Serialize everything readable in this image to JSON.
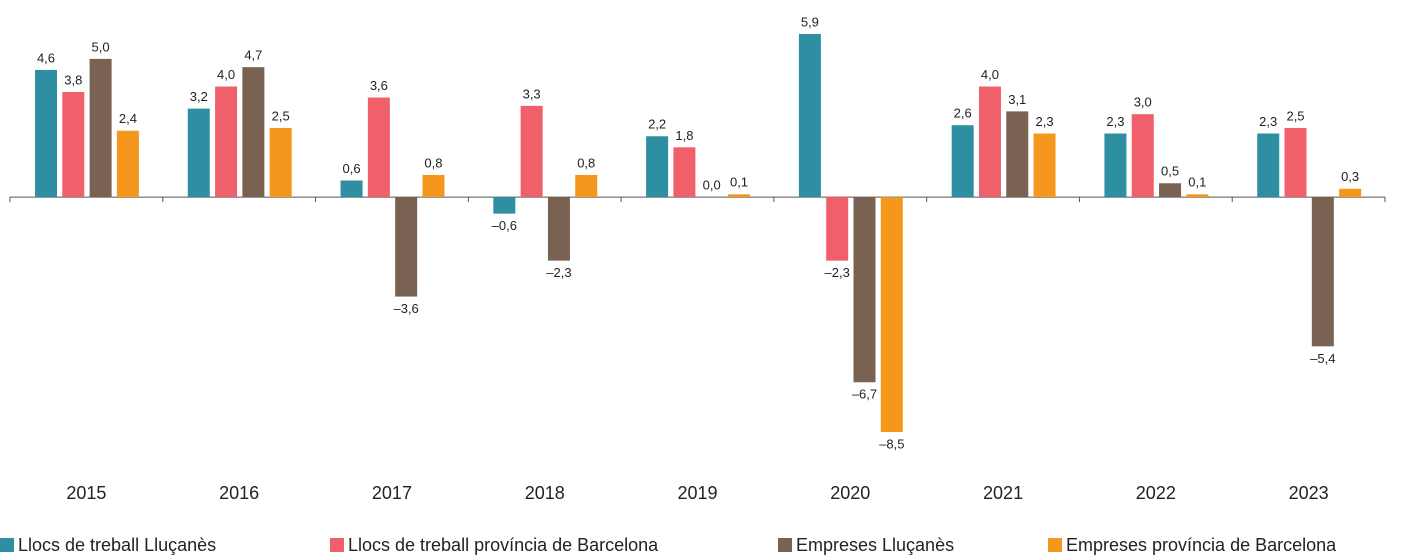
{
  "chart_data": {
    "type": "bar",
    "categories": [
      "2015",
      "2016",
      "2017",
      "2018",
      "2019",
      "2020",
      "2021",
      "2022",
      "2023"
    ],
    "series": [
      {
        "name": "Llocs de treball Lluçanès",
        "color": "#2e8fa3",
        "values": [
          4.6,
          3.2,
          0.6,
          -0.6,
          2.2,
          5.9,
          2.6,
          2.3,
          2.3
        ],
        "value_labels": [
          "4,6",
          "3,2",
          "0,6",
          "–0,6",
          "2,2",
          "5,9",
          "2,6",
          "2,3",
          "2,3"
        ]
      },
      {
        "name": "Llocs de treball província de Barcelona",
        "color": "#f0606b",
        "values": [
          3.8,
          4.0,
          3.6,
          3.3,
          1.8,
          -2.3,
          4.0,
          3.0,
          2.5
        ],
        "value_labels": [
          "3,8",
          "4,0",
          "3,6",
          "3,3",
          "1,8",
          "–2,3",
          "4,0",
          "3,0",
          "2,5"
        ]
      },
      {
        "name": "Empreses Lluçanès",
        "color": "#7a6252",
        "values": [
          5.0,
          4.7,
          -3.6,
          -2.3,
          0.0,
          -6.7,
          3.1,
          0.5,
          -5.4
        ],
        "value_labels": [
          "5,0",
          "4,7",
          "–3,6",
          "–2,3",
          "0,0",
          "–6,7",
          "3,1",
          "0,5",
          "–5,4"
        ]
      },
      {
        "name": "Empreses província de Barcelona",
        "color": "#f5971c",
        "values": [
          2.4,
          2.5,
          0.8,
          0.8,
          0.1,
          -8.5,
          2.3,
          0.1,
          0.3
        ],
        "value_labels": [
          "2,4",
          "2,5",
          "0,8",
          "0,8",
          "0,1",
          "–8,5",
          "2,3",
          "0,1",
          "0,3"
        ]
      }
    ]
  }
}
